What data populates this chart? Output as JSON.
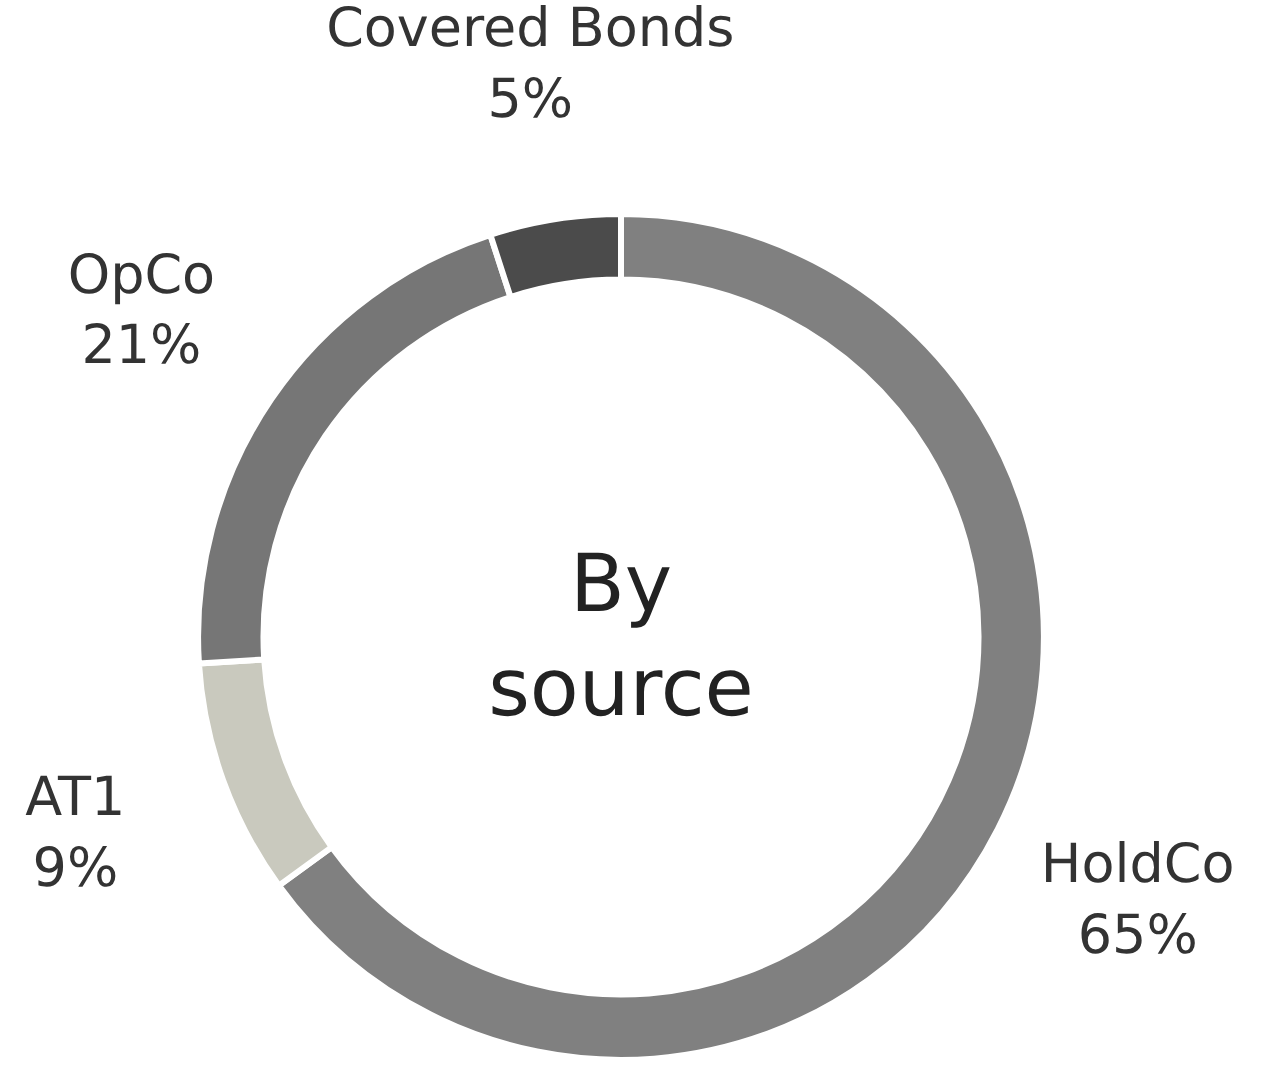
{
  "chart_data": {
    "type": "donut",
    "categories": [
      "HoldCo",
      "AT1",
      "OpCo",
      "Covered Bonds"
    ],
    "values": [
      65,
      9,
      21,
      5
    ],
    "value_labels": [
      "65%",
      "9%",
      "21%",
      "5%"
    ],
    "colors": [
      "#808080",
      "#c9c9be",
      "#767676",
      "#4b4b4b"
    ],
    "annotations": [
      "By\nsource"
    ]
  }
}
